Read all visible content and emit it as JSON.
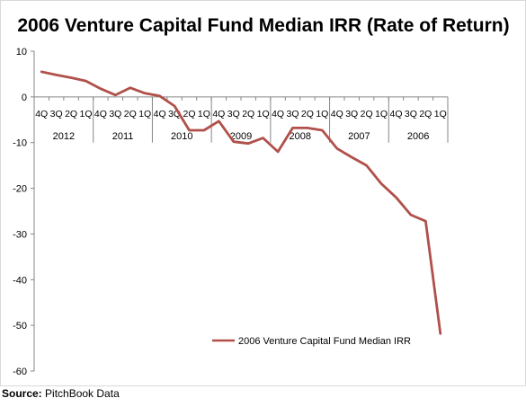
{
  "chart_data": {
    "type": "line",
    "title": "2006 Venture Capital Fund Median IRR (Rate of Return)",
    "xlabel": "",
    "ylabel": "",
    "ylim": [
      -60,
      10
    ],
    "yticks": [
      10,
      0,
      -10,
      -20,
      -30,
      -40,
      -50,
      -60
    ],
    "x": [
      "4Q",
      "3Q",
      "2Q",
      "1Q",
      "4Q",
      "3Q",
      "2Q",
      "1Q",
      "4Q",
      "3Q",
      "2Q",
      "1Q",
      "4Q",
      "3Q",
      "2Q",
      "1Q",
      "4Q",
      "3Q",
      "2Q",
      "1Q",
      "4Q",
      "3Q",
      "2Q",
      "1Q",
      "4Q",
      "3Q",
      "2Q",
      "1Q"
    ],
    "years": [
      "2012",
      "2011",
      "2010",
      "2009",
      "2008",
      "2007",
      "2006"
    ],
    "series": [
      {
        "name": "2006 Venture Capital Fund Median IRR",
        "color": "#b0504a",
        "values": [
          5.5,
          4.8,
          4.2,
          3.5,
          1.8,
          0.4,
          2.0,
          0.8,
          0.2,
          -2.0,
          -7.3,
          -7.3,
          -5.3,
          -9.8,
          -10.2,
          -9.0,
          -12.0,
          -6.8,
          -6.8,
          -7.3,
          -11.3,
          -13.2,
          -15.0,
          -19.0,
          -22.0,
          -25.8,
          -27.2,
          -51.8
        ]
      }
    ],
    "grid": false,
    "legend": "bottom-right"
  },
  "source": {
    "label": "Source:",
    "text": "PitchBook Data"
  }
}
